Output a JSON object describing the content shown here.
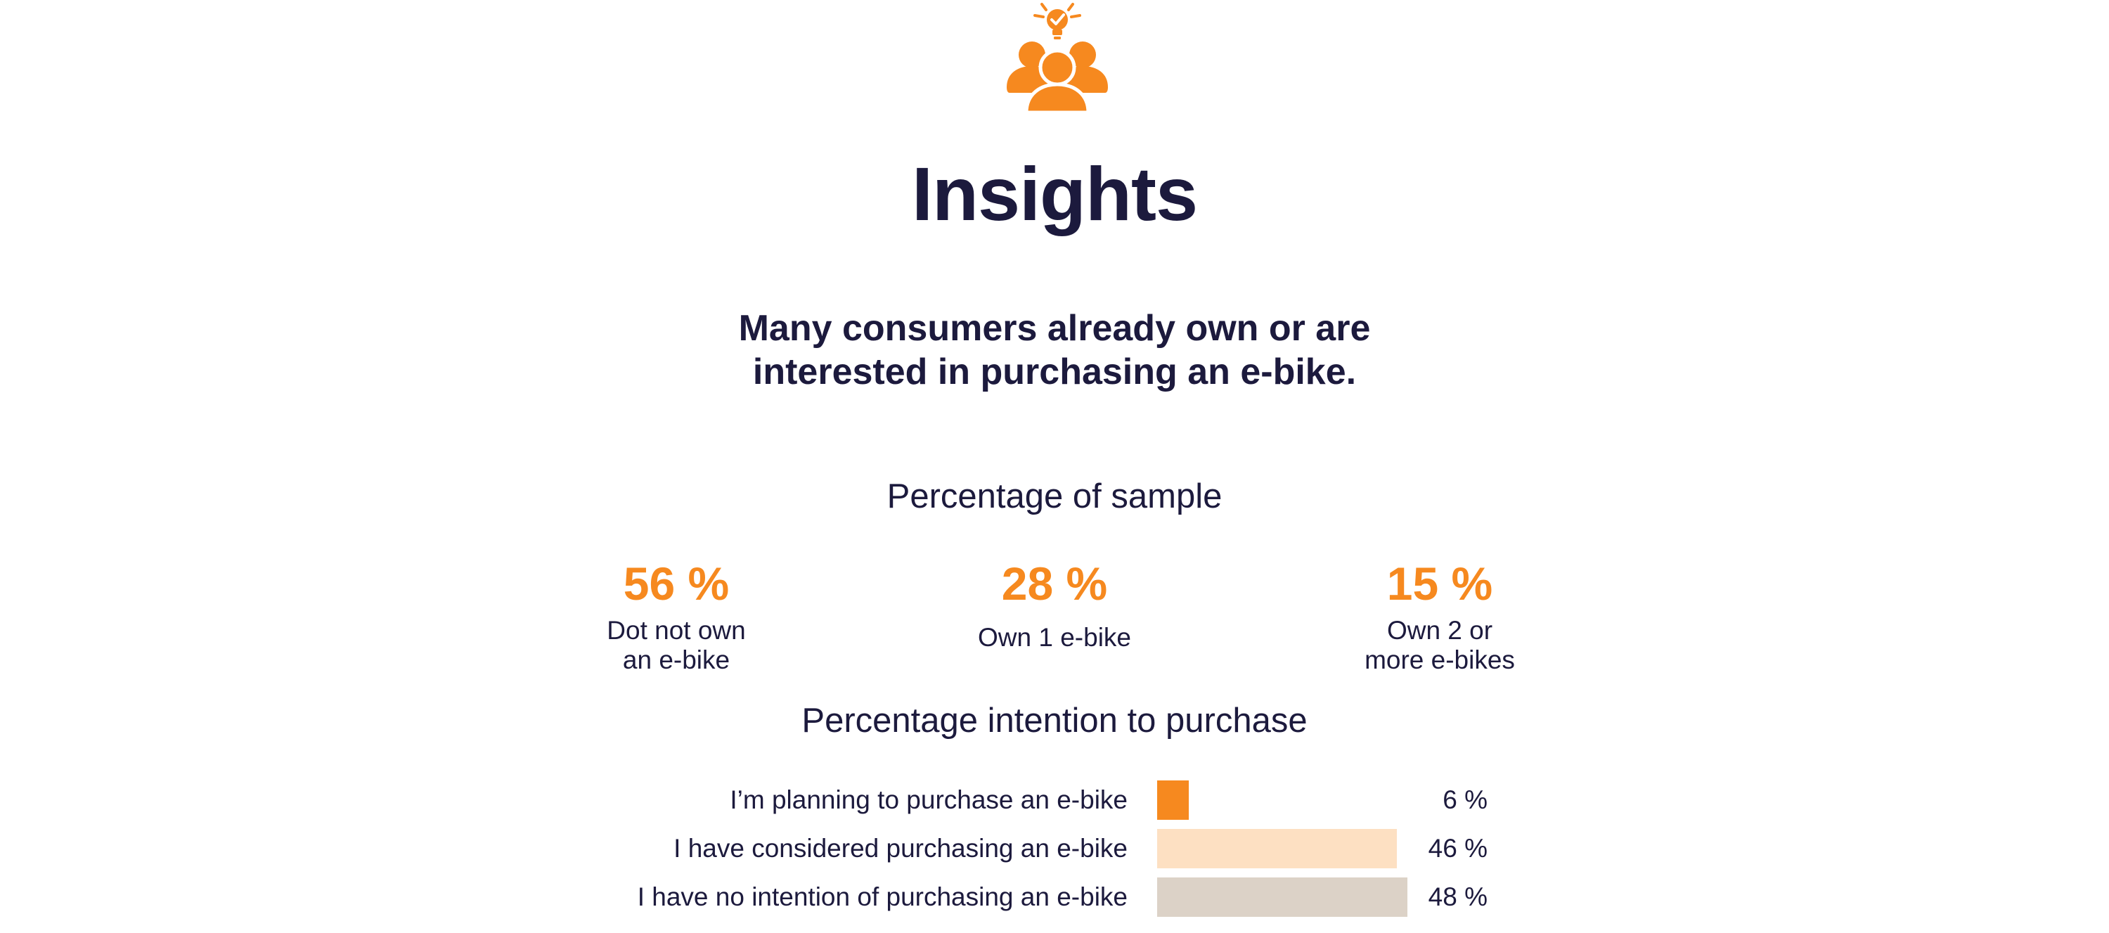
{
  "header": {
    "icon": "people-lightbulb-icon",
    "title": "Insights"
  },
  "headline": {
    "line1": "Many consumers already own or are",
    "line2": "interested in purchasing an e-bike."
  },
  "colors": {
    "accent": "#f6891f",
    "text": "#1c1a3d",
    "bar_light": "#fde0c2",
    "bar_neutral": "#dcd2c7"
  },
  "chart_data": [
    {
      "type": "table",
      "title": "Percentage of sample",
      "items": [
        {
          "value": 56,
          "value_text": "56 %",
          "label_lines": [
            "Dot not own",
            "an e-bike"
          ]
        },
        {
          "value": 28,
          "value_text": "28 %",
          "label_lines": [
            "Own 1 e-bike"
          ]
        },
        {
          "value": 15,
          "value_text": "15 %",
          "label_lines": [
            "Own 2 or",
            "more e-bikes"
          ]
        }
      ]
    },
    {
      "type": "bar",
      "orientation": "horizontal",
      "title": "Percentage intention to purchase",
      "categories": [
        "I’m planning to purchase an e-bike",
        "I have considered purchasing an e-bike",
        "I have no intention of purchasing an e-bike"
      ],
      "values": [
        6,
        46,
        48
      ],
      "value_labels": [
        "6 %",
        "46 %",
        "48 %"
      ],
      "bar_colors": [
        "#f6891f",
        "#fde0c2",
        "#dcd2c7"
      ],
      "xlim": [
        0,
        48
      ]
    }
  ]
}
